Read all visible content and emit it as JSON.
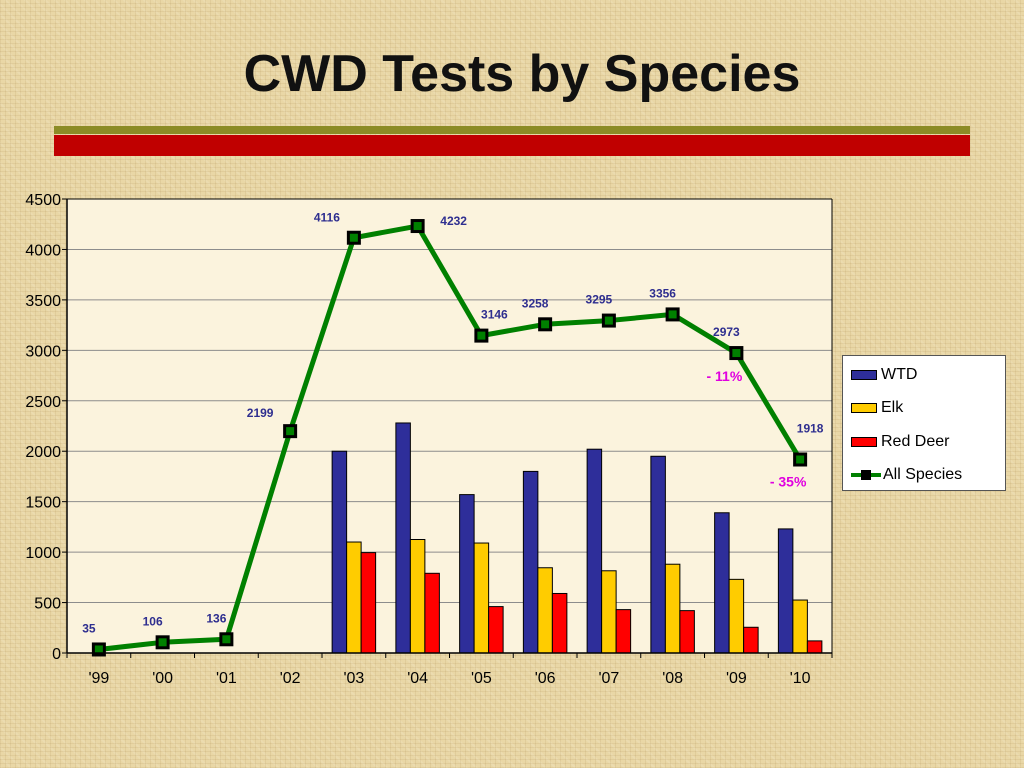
{
  "slide": {
    "title": "CWD Tests by Species"
  },
  "colors": {
    "wtd": "#2e2e9a",
    "elk": "#ffcc00",
    "red_deer": "#ff0000",
    "all_species": "#008000",
    "marker": "#000000",
    "data_label": "#2e2e8f",
    "annotation": "#e000e0",
    "plot_bg": "#fbf3dd",
    "title_bar_olive": "#8c8c26",
    "title_bar_red": "#c00000"
  },
  "chart_data": {
    "type": "bar",
    "title": "",
    "xlabel": "",
    "ylabel": "",
    "categories": [
      "'99",
      "'00",
      "'01",
      "'02",
      "'03",
      "'04",
      "'05",
      "'06",
      "'07",
      "'08",
      "'09",
      "'10"
    ],
    "ylim": [
      0,
      4500
    ],
    "yticks": [
      "0",
      "500",
      "1000",
      "1500",
      "2000",
      "2500",
      "3000",
      "3500",
      "4000",
      "4500"
    ],
    "grid": true,
    "legend_position": "right",
    "series": [
      {
        "name": "WTD",
        "type": "bar",
        "values": [
          null,
          null,
          null,
          null,
          2000,
          2280,
          1570,
          1800,
          2020,
          1950,
          1390,
          1230
        ]
      },
      {
        "name": "Elk",
        "type": "bar",
        "values": [
          null,
          null,
          null,
          null,
          1100,
          1125,
          1090,
          845,
          815,
          880,
          730,
          525
        ]
      },
      {
        "name": "Red Deer",
        "type": "bar",
        "values": [
          null,
          null,
          null,
          null,
          995,
          790,
          460,
          590,
          430,
          420,
          255,
          120
        ]
      },
      {
        "name": "All Species",
        "type": "line",
        "values": [
          35,
          106,
          136,
          2199,
          4116,
          4232,
          3146,
          3258,
          3295,
          3356,
          2973,
          1918
        ],
        "labels": [
          "35",
          "106",
          "136",
          "2199",
          "4116",
          "4232",
          "3146",
          "3258",
          "3295",
          "3356",
          "2973",
          "1918"
        ]
      }
    ],
    "annotations": [
      {
        "text": "- 11%",
        "category_index": 10
      },
      {
        "text": "- 35%",
        "category_index": 11
      }
    ]
  },
  "legend": {
    "items": [
      {
        "label": "WTD"
      },
      {
        "label": "Elk"
      },
      {
        "label": "Red Deer"
      },
      {
        "label": "All Species"
      }
    ]
  }
}
